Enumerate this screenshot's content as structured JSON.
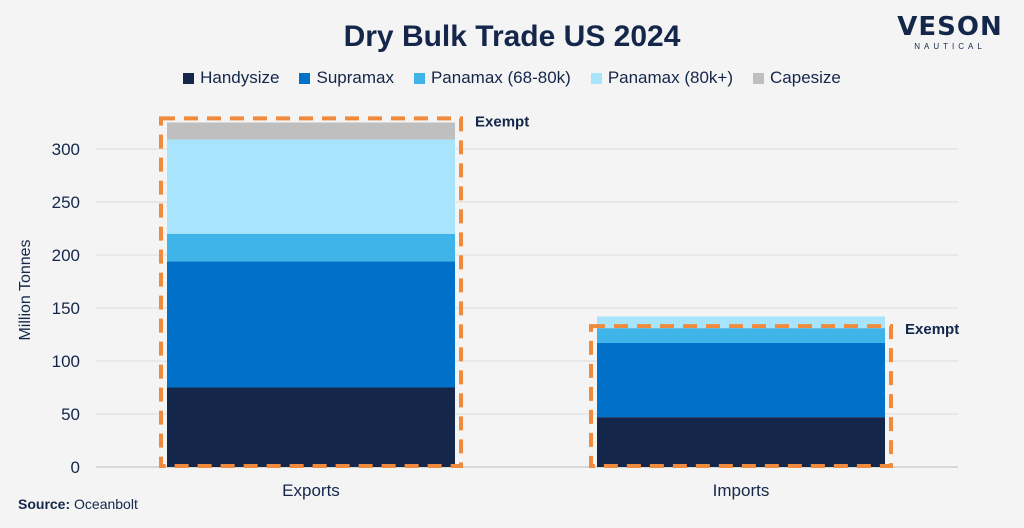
{
  "logo": {
    "name": "VESON",
    "sub": "NAUTICAL"
  },
  "source": {
    "label": "Source:",
    "value": "Oceanbolt"
  },
  "chart_data": {
    "type": "bar",
    "stacked": true,
    "title": "Dry Bulk Trade US 2024",
    "xlabel": "",
    "ylabel": "Million Tonnes",
    "ylim": [
      0,
      330
    ],
    "yticks": [
      0,
      50,
      100,
      150,
      200,
      250,
      300
    ],
    "grid": true,
    "legend_position": "top",
    "categories": [
      "Exports",
      "Imports"
    ],
    "series": [
      {
        "name": "Handysize",
        "color": "#14264a",
        "values": [
          75,
          47
        ]
      },
      {
        "name": "Supramax",
        "color": "#0070c8",
        "values": [
          119,
          70
        ]
      },
      {
        "name": "Panamax (68-80k)",
        "color": "#3fb4e8",
        "values": [
          26,
          14
        ]
      },
      {
        "name": "Panamax (80k+)",
        "color": "#a8e4fb",
        "values": [
          89,
          11
        ]
      },
      {
        "name": "Capesize",
        "color": "#bfbfbf",
        "values": [
          16,
          0
        ]
      }
    ],
    "annotations": [
      {
        "text": "Exempt",
        "category": "Exports",
        "bottom": 0,
        "top": 327
      },
      {
        "text": "Exempt",
        "category": "Imports",
        "bottom": 0,
        "top": 131
      }
    ],
    "annotation_color": "#f08a3c"
  }
}
